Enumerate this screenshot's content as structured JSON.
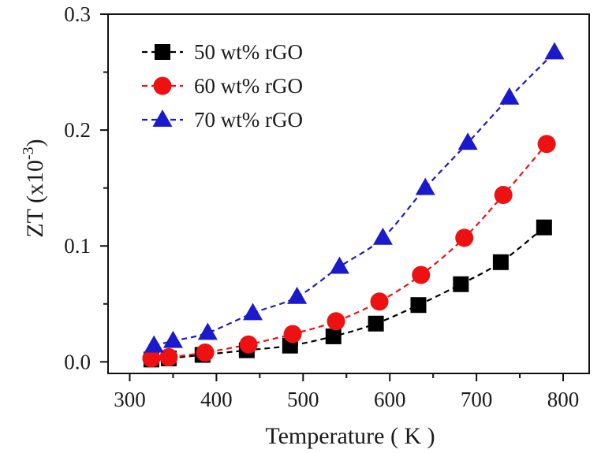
{
  "chart_data": {
    "type": "scatter",
    "title": "",
    "xlabel": "Temperature ( K )",
    "ylabel_main": "ZT (x10",
    "ylabel_exp": "-3",
    "ylabel_close": ")",
    "xlim": [
      275,
      830
    ],
    "ylim": [
      -0.01,
      0.3
    ],
    "xticks": [
      300,
      400,
      500,
      600,
      700,
      800
    ],
    "yticks": [
      0.0,
      0.1,
      0.2,
      0.3
    ],
    "xtick_labels": [
      "300",
      "400",
      "500",
      "600",
      "700",
      "800"
    ],
    "ytick_labels": [
      "0.0",
      "0.1",
      "0.2",
      "0.3"
    ],
    "legend_position": "top-left",
    "line_style": "dashed",
    "series": [
      {
        "name": "50 wt% rGO",
        "marker": "square",
        "color": "#000000",
        "x": [
          325,
          345,
          384,
          435,
          485,
          535,
          584,
          633,
          682,
          728,
          778
        ],
        "y": [
          0.002,
          0.003,
          0.006,
          0.01,
          0.014,
          0.022,
          0.033,
          0.049,
          0.067,
          0.086,
          0.116
        ]
      },
      {
        "name": "60 wt% rGO",
        "marker": "circle",
        "color": "#ee1111",
        "x": [
          325,
          345,
          387,
          437,
          488,
          538,
          588,
          636,
          686,
          731,
          781
        ],
        "y": [
          0.003,
          0.004,
          0.008,
          0.015,
          0.024,
          0.035,
          0.052,
          0.075,
          0.107,
          0.144,
          0.188
        ]
      },
      {
        "name": "70 wt% rGO",
        "marker": "triangle",
        "color": "#1a1acc",
        "x": [
          328,
          350,
          390,
          442,
          493,
          542,
          592,
          641,
          690,
          738,
          790
        ],
        "y": [
          0.014,
          0.018,
          0.025,
          0.042,
          0.056,
          0.082,
          0.107,
          0.15,
          0.189,
          0.228,
          0.267
        ]
      }
    ]
  }
}
